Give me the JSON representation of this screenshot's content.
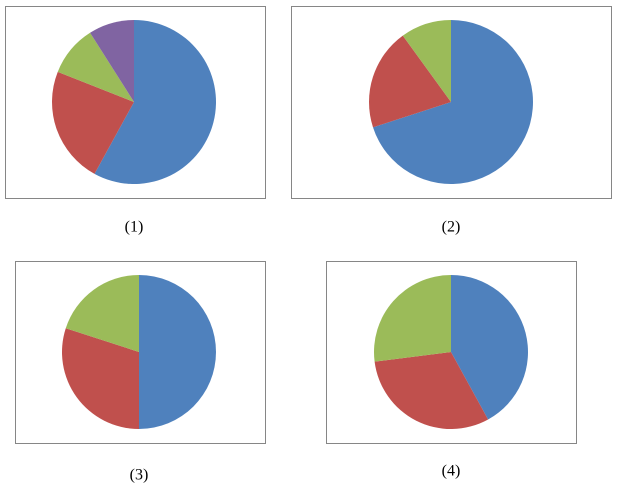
{
  "chart_data": [
    {
      "type": "pie",
      "caption": "(1)",
      "values": [
        58,
        23,
        10,
        9
      ],
      "colors": [
        "#4f81bd",
        "#c0504d",
        "#9bbb59",
        "#8064a2"
      ]
    },
    {
      "type": "pie",
      "caption": "(2)",
      "values": [
        70,
        20,
        10
      ],
      "colors": [
        "#4f81bd",
        "#c0504d",
        "#9bbb59"
      ]
    },
    {
      "type": "pie",
      "caption": "(3)",
      "values": [
        50,
        30,
        20
      ],
      "colors": [
        "#4f81bd",
        "#c0504d",
        "#9bbb59"
      ]
    },
    {
      "type": "pie",
      "caption": "(4)",
      "values": [
        42,
        31,
        27
      ],
      "colors": [
        "#4f81bd",
        "#c0504d",
        "#9bbb59"
      ]
    }
  ]
}
